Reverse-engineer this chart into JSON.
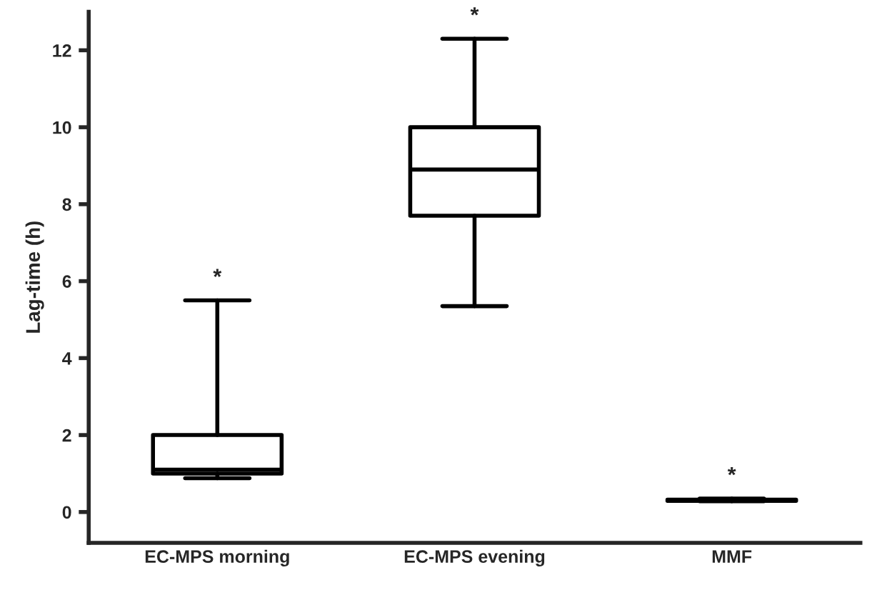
{
  "chart_data": {
    "type": "box",
    "ylabel": "Lag-time (h)",
    "categories": [
      "EC-MPS morning",
      "EC-MPS evening",
      "MMF"
    ],
    "boxes": [
      {
        "low": 0.88,
        "q1": 1.0,
        "median": 1.1,
        "q3": 2.0,
        "high": 5.5
      },
      {
        "low": 5.35,
        "q1": 7.7,
        "median": 8.9,
        "q3": 10.0,
        "high": 12.3
      },
      {
        "low": 0.28,
        "q1": 0.29,
        "median": 0.3,
        "q3": 0.32,
        "high": 0.35
      }
    ],
    "ylim": [
      -0.8,
      13
    ],
    "yticks": [
      0,
      2,
      4,
      6,
      8,
      10,
      12
    ],
    "grid": false,
    "color": "#000000",
    "annotations": [
      {
        "text": "*",
        "x": "EC-MPS morning",
        "y": 5.5
      },
      {
        "text": "*",
        "x": "EC-MPS evening",
        "y": 12.3
      },
      {
        "text": "*",
        "x": "MMF",
        "y": 0.35
      }
    ]
  }
}
